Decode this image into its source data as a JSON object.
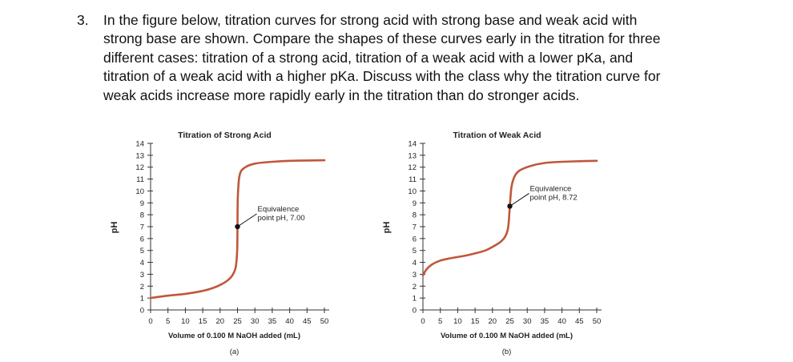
{
  "question": {
    "number": "3.",
    "lines": [
      "In the figure below, titration curves for strong acid with strong base and weak acid with",
      "strong base are shown. Compare the shapes of these curves early in the titration for three",
      "different cases: titration of a strong acid, titration of a weak acid with a lower pKa, and",
      "titration of a weak acid with a higher pKa. Discuss with the class why the titration curve for",
      "weak acids increase more rapidly early in the titration than do stronger acids."
    ]
  },
  "chart_data": [
    {
      "type": "line",
      "title": "Titration of Strong Acid",
      "xlabel": "Volume of 0.100 M NaOH added (mL)",
      "ylabel": "pH",
      "panel_label": "(a)",
      "xlim": [
        0,
        50
      ],
      "ylim": [
        0,
        14
      ],
      "x_ticks": [
        0,
        5,
        10,
        15,
        20,
        25,
        30,
        35,
        40,
        45,
        50
      ],
      "y_ticks": [
        0,
        1,
        2,
        3,
        4,
        5,
        6,
        7,
        8,
        9,
        10,
        11,
        12,
        13,
        14
      ],
      "grid": false,
      "points": [
        [
          0,
          1.0
        ],
        [
          5,
          1.2
        ],
        [
          10,
          1.35
        ],
        [
          15,
          1.6
        ],
        [
          18,
          1.85
        ],
        [
          20,
          2.1
        ],
        [
          22,
          2.45
        ],
        [
          23.5,
          2.9
        ],
        [
          24.5,
          3.6
        ],
        [
          24.9,
          5.0
        ],
        [
          25,
          7.0
        ],
        [
          25.1,
          9.5
        ],
        [
          25.6,
          11.3
        ],
        [
          27,
          11.95
        ],
        [
          30,
          12.3
        ],
        [
          35,
          12.45
        ],
        [
          40,
          12.53
        ],
        [
          45,
          12.56
        ],
        [
          50,
          12.58
        ]
      ],
      "equivalence_point": {
        "x": 25,
        "y": 7.0
      },
      "annotation": [
        "Equivalence",
        "point pH, 7.00"
      ]
    },
    {
      "type": "line",
      "title": "Titration of Weak Acid",
      "xlabel": "Volume of 0.100 M NaOH added (mL)",
      "ylabel": "pH",
      "panel_label": "(b)",
      "xlim": [
        0,
        50
      ],
      "ylim": [
        0,
        14
      ],
      "x_ticks": [
        0,
        5,
        10,
        15,
        20,
        25,
        30,
        35,
        40,
        45,
        50
      ],
      "y_ticks": [
        0,
        1,
        2,
        3,
        4,
        5,
        6,
        7,
        8,
        9,
        10,
        11,
        12,
        13,
        14
      ],
      "grid": false,
      "points": [
        [
          0,
          2.9
        ],
        [
          1,
          3.4
        ],
        [
          2.5,
          3.8
        ],
        [
          5,
          4.15
        ],
        [
          8,
          4.35
        ],
        [
          12,
          4.55
        ],
        [
          15,
          4.75
        ],
        [
          18,
          5.0
        ],
        [
          20,
          5.3
        ],
        [
          22,
          5.65
        ],
        [
          23.5,
          6.1
        ],
        [
          24.5,
          6.9
        ],
        [
          25,
          8.72
        ],
        [
          25.5,
          10.4
        ],
        [
          26.5,
          11.3
        ],
        [
          28,
          11.75
        ],
        [
          31,
          12.1
        ],
        [
          35,
          12.35
        ],
        [
          40,
          12.45
        ],
        [
          45,
          12.5
        ],
        [
          50,
          12.53
        ]
      ],
      "equivalence_point": {
        "x": 25,
        "y": 8.72
      },
      "annotation": [
        "Equivalence",
        "point pH, 8.72"
      ]
    }
  ],
  "colors": {
    "curve": "#c0573a",
    "axis": "#333333",
    "marker": "#111111"
  }
}
